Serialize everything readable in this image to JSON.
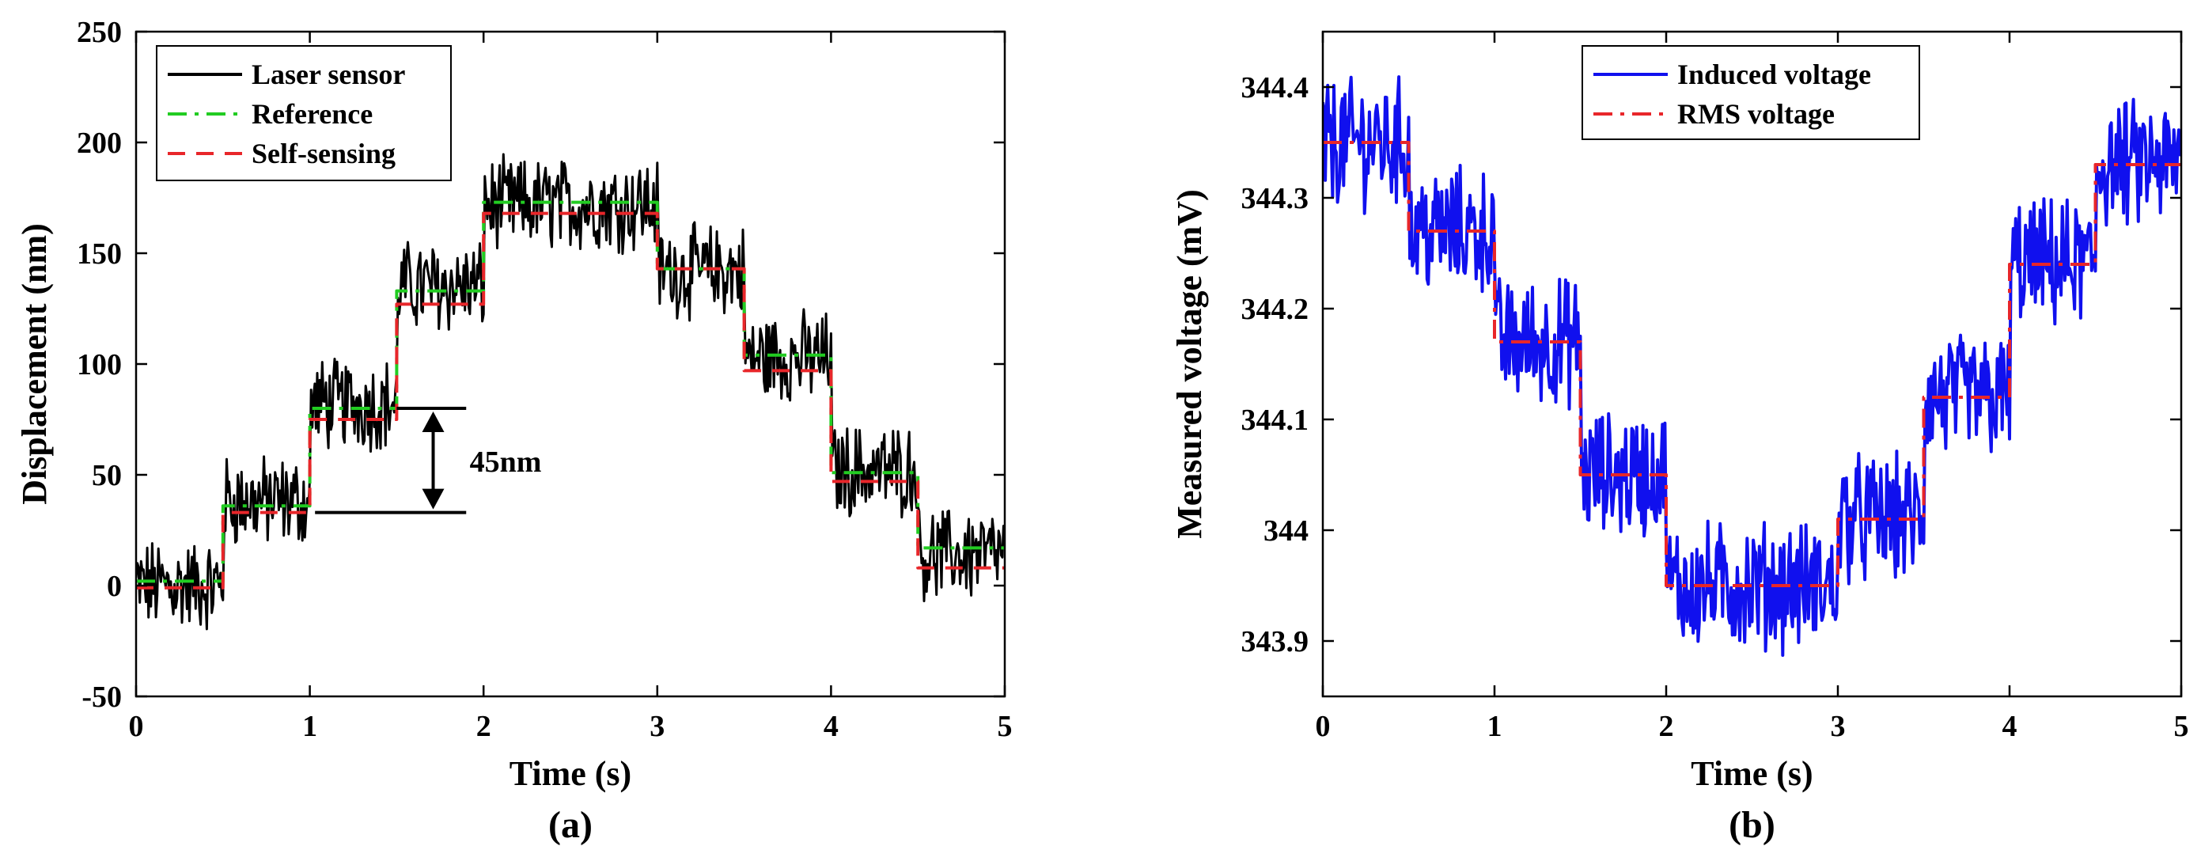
{
  "chart_data": [
    {
      "type": "line",
      "panel_label": "(a)",
      "xlabel": "Time (s)",
      "ylabel": "Displacement (nm)",
      "xlim": [
        0,
        5
      ],
      "ylim": [
        -50,
        250
      ],
      "xticks": [
        0,
        1,
        2,
        3,
        4,
        5
      ],
      "xtick_labels": [
        "0",
        "1",
        "2",
        "3",
        "4",
        "5"
      ],
      "yticks": [
        -50,
        0,
        50,
        100,
        150,
        200,
        250
      ],
      "ytick_labels": [
        "-50",
        "0",
        "50",
        "100",
        "150",
        "200",
        "250"
      ],
      "legend_position": "top-left",
      "grid": false,
      "annotation": {
        "text": "45nm",
        "y_from": 33,
        "y_to": 80
      },
      "series": [
        {
          "name": "Laser sensor",
          "color": "#000000",
          "style": "solid-noisy",
          "noise_amplitude": 18,
          "x": [
            0,
            0.5,
            0.5,
            1,
            1,
            1.5,
            1.5,
            2,
            2,
            3,
            3,
            3.5,
            3.5,
            4,
            4,
            4.5,
            4.5,
            5
          ],
          "y": [
            0,
            0,
            38,
            38,
            82,
            82,
            135,
            135,
            172,
            172,
            142,
            142,
            103,
            103,
            52,
            52,
            14,
            14
          ]
        },
        {
          "name": "Reference",
          "color": "#22cc22",
          "style": "dashdot",
          "x": [
            0,
            0.5,
            0.5,
            1,
            1,
            1.5,
            1.5,
            2,
            2,
            3,
            3,
            3.5,
            3.5,
            4,
            4,
            4.5,
            4.5,
            5
          ],
          "y": [
            2,
            2,
            36,
            36,
            80,
            80,
            133,
            133,
            173,
            173,
            143,
            143,
            104,
            104,
            51,
            51,
            17,
            17
          ]
        },
        {
          "name": "Self-sensing",
          "color": "#e8262a",
          "style": "dashed",
          "x": [
            0,
            0.5,
            0.5,
            1,
            1,
            1.5,
            1.5,
            2,
            2,
            3,
            3,
            3.5,
            3.5,
            4,
            4,
            4.5,
            4.5,
            5
          ],
          "y": [
            -1,
            -1,
            33,
            33,
            75,
            75,
            127,
            127,
            168,
            168,
            143,
            143,
            97,
            97,
            47,
            47,
            8,
            8
          ]
        }
      ]
    },
    {
      "type": "line",
      "panel_label": "(b)",
      "xlabel": "Time (s)",
      "ylabel": "Measured voltage (mV)",
      "xlim": [
        0,
        5
      ],
      "ylim": [
        343.85,
        344.45
      ],
      "xticks": [
        0,
        1,
        2,
        3,
        4,
        5
      ],
      "xtick_labels": [
        "0",
        "1",
        "2",
        "3",
        "4",
        "5"
      ],
      "yticks": [
        343.9,
        344,
        344.1,
        344.2,
        344.3,
        344.4
      ],
      "ytick_labels": [
        "343.9",
        "344",
        "344.1",
        "344.2",
        "344.3",
        "344.4"
      ],
      "legend_position": "top-center",
      "grid": false,
      "series": [
        {
          "name": "Induced voltage",
          "color": "#1010ee",
          "style": "solid-noisy",
          "noise_amplitude": 0.05,
          "x": [
            0,
            0.5,
            0.5,
            1,
            1,
            1.5,
            1.5,
            2,
            2,
            3,
            3,
            3.5,
            3.5,
            4,
            4,
            4.5,
            4.5,
            5
          ],
          "y": [
            344.35,
            344.35,
            344.27,
            344.27,
            344.17,
            344.17,
            344.05,
            344.05,
            343.95,
            343.95,
            344.01,
            344.01,
            344.12,
            344.12,
            344.24,
            344.24,
            344.33,
            344.33
          ]
        },
        {
          "name": "RMS voltage",
          "color": "#e8262a",
          "style": "dashdot",
          "x": [
            0,
            0.5,
            0.5,
            1,
            1,
            1.5,
            1.5,
            2,
            2,
            3,
            3,
            3.5,
            3.5,
            4,
            4,
            4.5,
            4.5,
            5
          ],
          "y": [
            344.35,
            344.35,
            344.27,
            344.27,
            344.17,
            344.17,
            344.05,
            344.05,
            343.95,
            343.95,
            344.01,
            344.01,
            344.12,
            344.12,
            344.24,
            344.24,
            344.33,
            344.33
          ]
        }
      ]
    }
  ]
}
